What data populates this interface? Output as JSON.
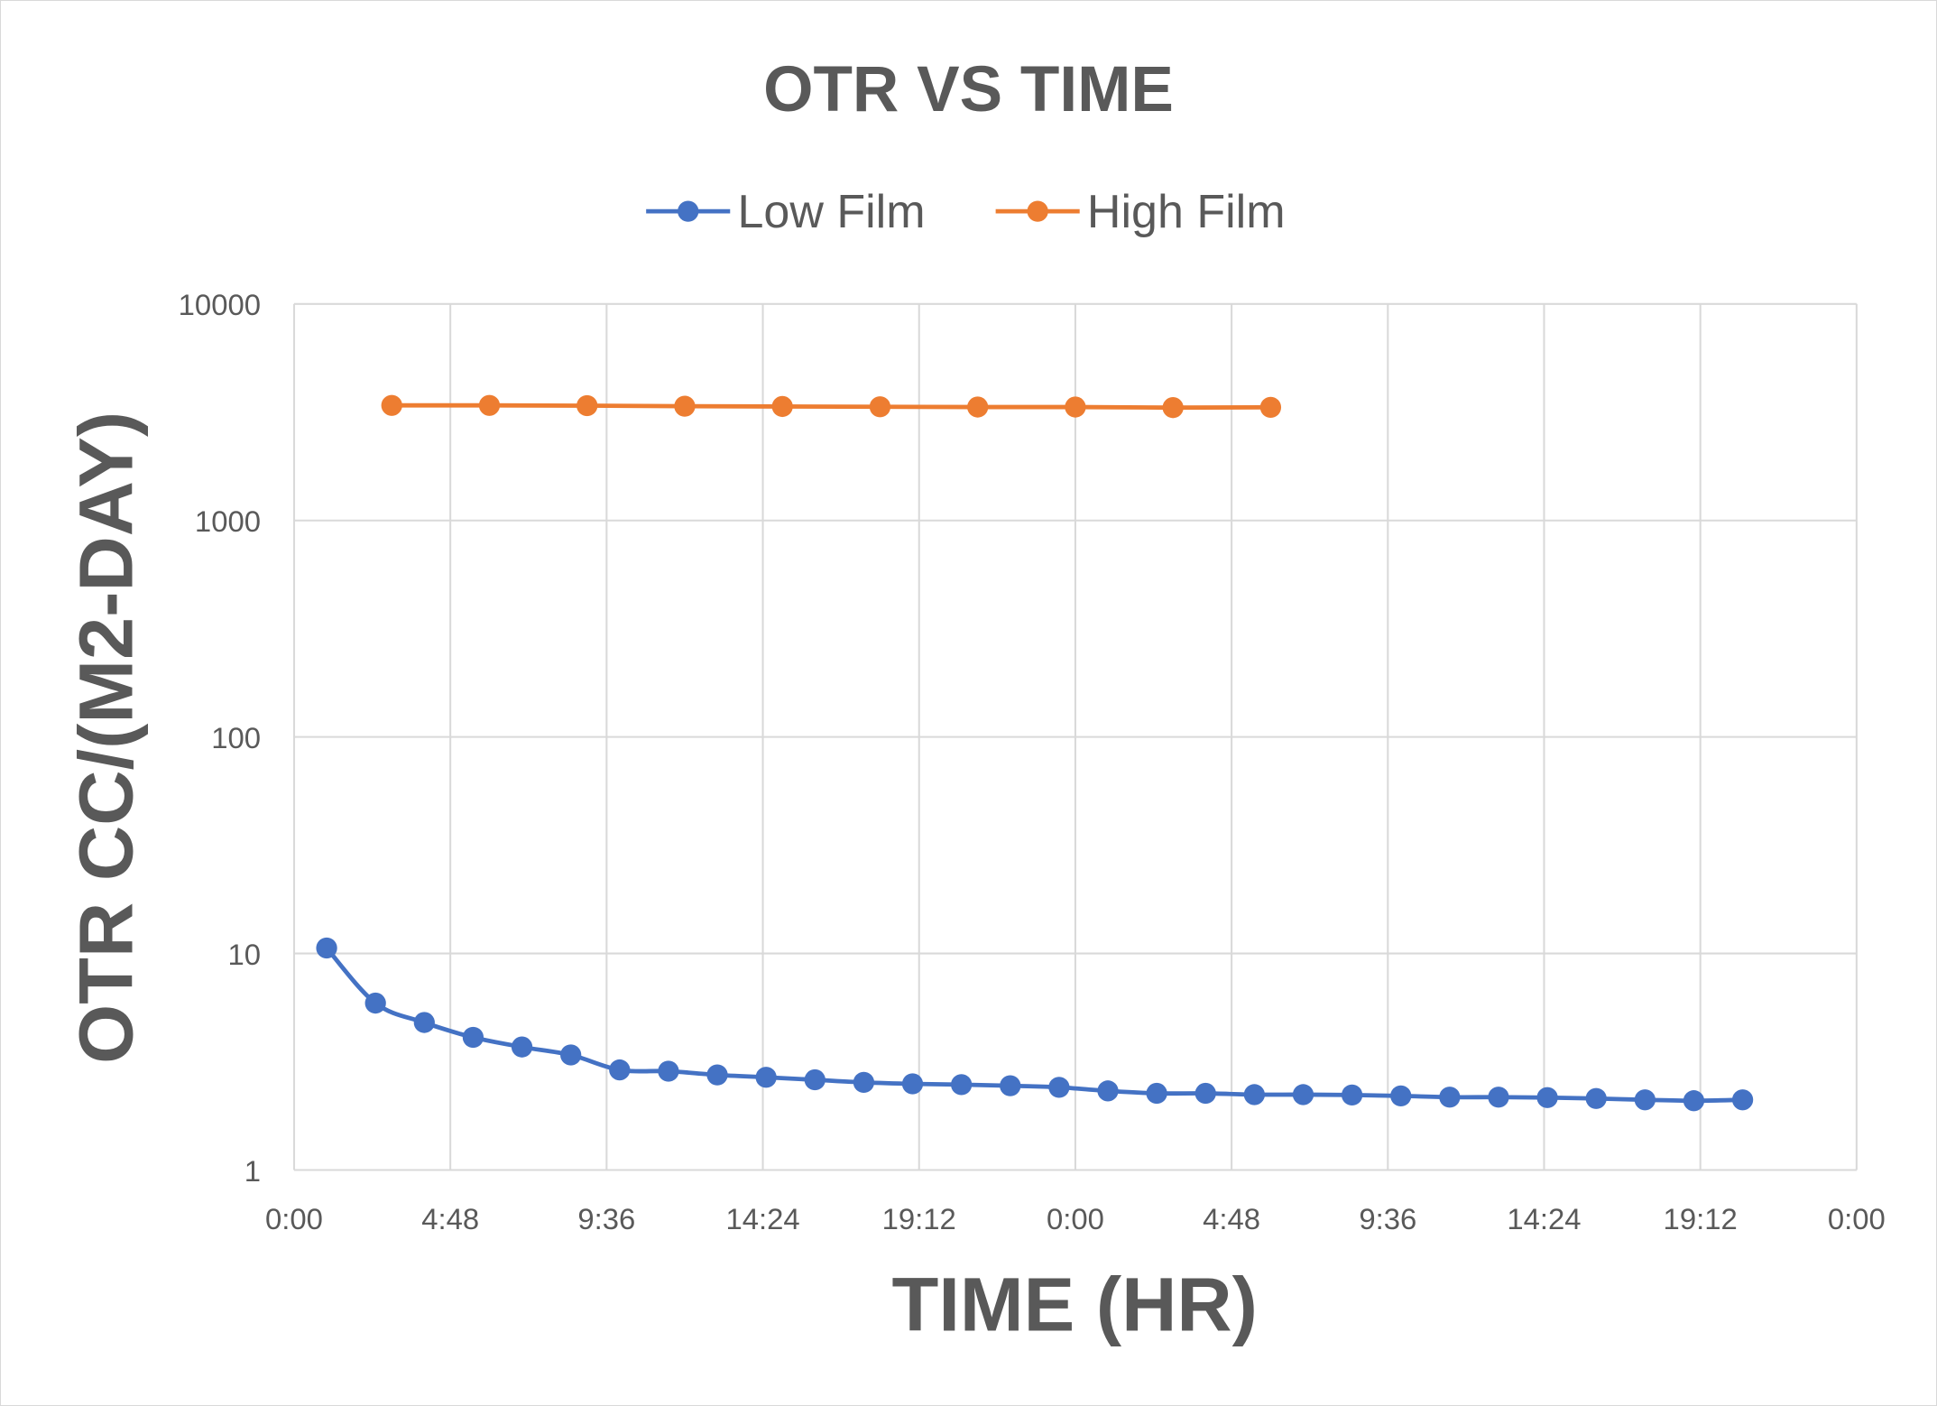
{
  "chart_data": {
    "type": "line",
    "title": "OTR VS TIME",
    "xlabel": "TIME (HR)",
    "ylabel": "OTR CC/(M2-DAY)",
    "x_unit": "hours",
    "xlim": [
      0,
      48
    ],
    "x_tick_values": [
      0,
      4.8,
      9.6,
      14.4,
      19.2,
      24,
      28.8,
      33.6,
      38.4,
      43.2,
      48
    ],
    "x_tick_labels": [
      "0:00",
      "4:48",
      "9:36",
      "14:24",
      "19:12",
      "0:00",
      "4:48",
      "9:36",
      "14:24",
      "19:12",
      "0:00"
    ],
    "yscale": "log",
    "ylim": [
      1,
      10000
    ],
    "y_tick_labels": [
      "1",
      "10",
      "100",
      "1000",
      "10000"
    ],
    "grid": true,
    "legend_position": "top",
    "series": [
      {
        "name": "Low Film",
        "color": "#4472C4",
        "marker": "circle",
        "smooth": true,
        "x": [
          1,
          2.5,
          4,
          5.5,
          7,
          8.5,
          10,
          11.5,
          13,
          14.5,
          16,
          17.5,
          19,
          20.5,
          22,
          23.5,
          25,
          26.5,
          28,
          29.5,
          31,
          32.5,
          34,
          35.5,
          37,
          38.5,
          40,
          41.5,
          43,
          44.5
        ],
        "y": [
          10.6,
          5.9,
          4.8,
          4.1,
          3.7,
          3.4,
          2.9,
          2.86,
          2.75,
          2.68,
          2.61,
          2.54,
          2.5,
          2.48,
          2.45,
          2.41,
          2.32,
          2.26,
          2.26,
          2.23,
          2.23,
          2.22,
          2.2,
          2.17,
          2.17,
          2.16,
          2.14,
          2.11,
          2.09,
          2.11
        ]
      },
      {
        "name": "High Film",
        "color": "#ED7D31",
        "marker": "circle",
        "smooth": false,
        "x": [
          3,
          6,
          9,
          12,
          15,
          18,
          21,
          24,
          27,
          30
        ],
        "y": [
          3400,
          3400,
          3390,
          3370,
          3360,
          3350,
          3340,
          3340,
          3320,
          3330
        ]
      }
    ]
  }
}
